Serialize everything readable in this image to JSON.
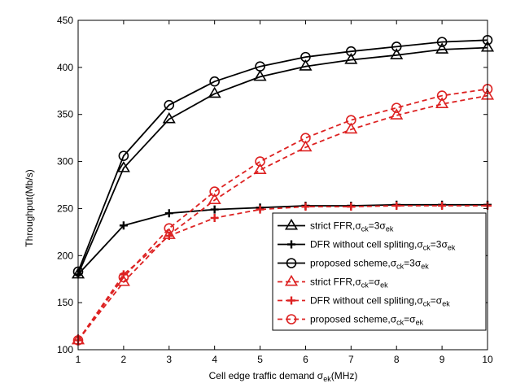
{
  "chart_data": {
    "type": "line",
    "title": "",
    "xlabel": "Cell edge traffic demand σ",
    "xlabel_sub": "ek",
    "xlabel_unit": "(MHz)",
    "ylabel": "Throughput(Mb/s)",
    "xlim": [
      1,
      10
    ],
    "ylim": [
      100,
      450
    ],
    "xticks": [
      "1",
      "2",
      "3",
      "4",
      "5",
      "6",
      "7",
      "8",
      "9",
      "10"
    ],
    "yticks": [
      "100",
      "150",
      "200",
      "250",
      "300",
      "350",
      "400",
      "450"
    ],
    "grid": false,
    "legend_position": "bottom-right",
    "x": [
      1,
      2,
      3,
      4,
      5,
      6,
      7,
      8,
      9,
      10
    ],
    "series": [
      {
        "name": "strict FFR,σck=3σek",
        "legend": {
          "pre": "strict FFR,σ",
          "s1": "ck",
          "mid": "=3σ",
          "s2": "ek"
        },
        "color": "#000000",
        "dash": "solid",
        "marker": "triangle",
        "values": [
          180,
          293,
          345,
          372,
          390,
          401,
          408,
          413,
          419,
          421
        ]
      },
      {
        "name": "DFR without cell spliting,σck=3σek",
        "legend": {
          "pre": "DFR without cell spliting,σ",
          "s1": "ck",
          "mid": "=3σ",
          "s2": "ek"
        },
        "color": "#000000",
        "dash": "solid",
        "marker": "plus",
        "values": [
          180,
          232,
          245,
          249,
          251,
          253,
          253,
          254,
          254,
          254
        ]
      },
      {
        "name": "proposed scheme,σck=3σek",
        "legend": {
          "pre": "proposed scheme,σ",
          "s1": "ck",
          "mid": "=3σ",
          "s2": "ek"
        },
        "color": "#000000",
        "dash": "solid",
        "marker": "circle",
        "values": [
          183,
          306,
          360,
          385,
          401,
          411,
          417,
          422,
          427,
          429
        ]
      },
      {
        "name": "strict FFR,σck=σek",
        "legend": {
          "pre": "strict FFR,σ",
          "s1": "ck",
          "mid": "=σ",
          "s2": "ek"
        },
        "color": "#dd2222",
        "dash": "dashed",
        "marker": "triangle",
        "values": [
          110,
          172,
          222,
          259,
          291,
          315,
          334,
          349,
          361,
          370
        ]
      },
      {
        "name": "DFR without cell spliting,σck=σek",
        "legend": {
          "pre": "DFR without cell spliting,σ",
          "s1": "ck",
          "mid": "=σ",
          "s2": "ek"
        },
        "color": "#dd2222",
        "dash": "dashed",
        "marker": "plus",
        "values": [
          110,
          180,
          221,
          240,
          249,
          252,
          252,
          253,
          253,
          253
        ]
      },
      {
        "name": "proposed scheme,σck=σek",
        "legend": {
          "pre": "proposed scheme,σ",
          "s1": "ck",
          "mid": "=σ",
          "s2": "ek"
        },
        "color": "#dd2222",
        "dash": "dashed",
        "marker": "circle",
        "values": [
          110,
          177,
          229,
          268,
          300,
          325,
          344,
          357,
          370,
          377
        ]
      }
    ]
  }
}
